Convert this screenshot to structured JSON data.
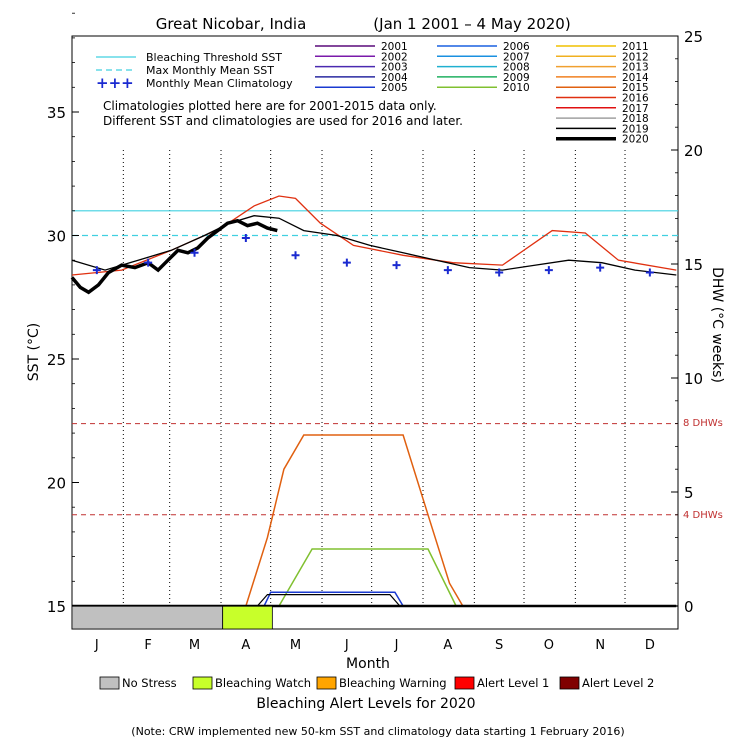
{
  "chart_data": {
    "type": "line",
    "title": "Great Nicobar, India",
    "date_range": "(Jan 1 2001 – 4 May 2020)",
    "xlabel": "Month",
    "ylabel": "SST (°C)",
    "ylabel_right": "DHW (°C weeks)",
    "yticks": [
      "15",
      "20",
      "25",
      "30",
      "35"
    ],
    "yticks_right": [
      "0",
      "5",
      "10",
      "15",
      "20",
      "25"
    ],
    "ylim": [
      15,
      39
    ],
    "ylim_right": [
      0,
      25
    ],
    "x_month_labels": [
      "J",
      "F",
      "M",
      "A",
      "M",
      "J",
      "J",
      "A",
      "S",
      "O",
      "N",
      "D"
    ],
    "notes": [
      "Climatologies plotted here are for 2001-2015 data only.",
      "Different SST and climatologies are used for 2016 and later."
    ],
    "reference_lines": {
      "bleaching_threshold_label": "Bleaching Threshold SST",
      "bleaching_threshold_sst": 31.0,
      "max_monthly_mean_label": "Max Monthly Mean SST",
      "max_monthly_mean_sst": 30.0,
      "monthly_mean_label": "Monthly Mean Climatology",
      "dhw_4_label": "4 DHWs",
      "dhw_8_label": "8 DHWs"
    },
    "years": [
      {
        "name": "2001",
        "color": "#5a0a7a",
        "bold": false
      },
      {
        "name": "2002",
        "color": "#7a1aaa",
        "bold": false
      },
      {
        "name": "2003",
        "color": "#4a2ab0",
        "bold": false
      },
      {
        "name": "2004",
        "color": "#2a2aa0",
        "bold": false
      },
      {
        "name": "2005",
        "color": "#1a3ad0",
        "bold": false
      },
      {
        "name": "2006",
        "color": "#1a60e0",
        "bold": false
      },
      {
        "name": "2007",
        "color": "#1a90e0",
        "bold": false
      },
      {
        "name": "2008",
        "color": "#20b0d0",
        "bold": false
      },
      {
        "name": "2009",
        "color": "#20b060",
        "bold": false
      },
      {
        "name": "2010",
        "color": "#80c030",
        "bold": false
      },
      {
        "name": "2011",
        "color": "#f0c000",
        "bold": false
      },
      {
        "name": "2012",
        "color": "#f0b020",
        "bold": false
      },
      {
        "name": "2013",
        "color": "#f0a030",
        "bold": false
      },
      {
        "name": "2014",
        "color": "#f08020",
        "bold": false
      },
      {
        "name": "2015",
        "color": "#e06010",
        "bold": false
      },
      {
        "name": "2016",
        "color": "#e03010",
        "bold": false
      },
      {
        "name": "2017",
        "color": "#e01010",
        "bold": false
      },
      {
        "name": "2018",
        "color": "#a0a0a0",
        "bold": false
      },
      {
        "name": "2019",
        "color": "#000000",
        "bold": false
      },
      {
        "name": "2020",
        "color": "#000000",
        "bold": true
      }
    ],
    "climatology_points": [
      {
        "day": 15,
        "sst": 28.6
      },
      {
        "day": 46,
        "sst": 28.9
      },
      {
        "day": 74,
        "sst": 29.3
      },
      {
        "day": 105,
        "sst": 29.9
      },
      {
        "day": 135,
        "sst": 29.2
      },
      {
        "day": 166,
        "sst": 28.9
      },
      {
        "day": 196,
        "sst": 28.8
      },
      {
        "day": 227,
        "sst": 28.6
      },
      {
        "day": 258,
        "sst": 28.5
      },
      {
        "day": 288,
        "sst": 28.6
      },
      {
        "day": 319,
        "sst": 28.7
      },
      {
        "day": 349,
        "sst": 28.5
      }
    ],
    "sst_2020": [
      {
        "day": 0,
        "sst": 28.3
      },
      {
        "day": 5,
        "sst": 27.9
      },
      {
        "day": 10,
        "sst": 27.7
      },
      {
        "day": 16,
        "sst": 28.0
      },
      {
        "day": 22,
        "sst": 28.5
      },
      {
        "day": 30,
        "sst": 28.8
      },
      {
        "day": 38,
        "sst": 28.7
      },
      {
        "day": 46,
        "sst": 28.9
      },
      {
        "day": 52,
        "sst": 28.6
      },
      {
        "day": 58,
        "sst": 29.0
      },
      {
        "day": 64,
        "sst": 29.4
      },
      {
        "day": 70,
        "sst": 29.3
      },
      {
        "day": 76,
        "sst": 29.5
      },
      {
        "day": 82,
        "sst": 29.9
      },
      {
        "day": 88,
        "sst": 30.2
      },
      {
        "day": 94,
        "sst": 30.5
      },
      {
        "day": 100,
        "sst": 30.6
      },
      {
        "day": 106,
        "sst": 30.4
      },
      {
        "day": 112,
        "sst": 30.5
      },
      {
        "day": 118,
        "sst": 30.3
      },
      {
        "day": 124,
        "sst": 30.2
      }
    ],
    "sst_2019": [
      {
        "day": 0,
        "sst": 29.0
      },
      {
        "day": 20,
        "sst": 28.6
      },
      {
        "day": 40,
        "sst": 29.0
      },
      {
        "day": 60,
        "sst": 29.4
      },
      {
        "day": 80,
        "sst": 30.0
      },
      {
        "day": 95,
        "sst": 30.5
      },
      {
        "day": 110,
        "sst": 30.8
      },
      {
        "day": 125,
        "sst": 30.7
      },
      {
        "day": 140,
        "sst": 30.2
      },
      {
        "day": 160,
        "sst": 30.0
      },
      {
        "day": 180,
        "sst": 29.6
      },
      {
        "day": 200,
        "sst": 29.3
      },
      {
        "day": 220,
        "sst": 29.0
      },
      {
        "day": 240,
        "sst": 28.7
      },
      {
        "day": 260,
        "sst": 28.6
      },
      {
        "day": 280,
        "sst": 28.8
      },
      {
        "day": 300,
        "sst": 29.0
      },
      {
        "day": 320,
        "sst": 28.9
      },
      {
        "day": 340,
        "sst": 28.6
      },
      {
        "day": 365,
        "sst": 28.4
      }
    ],
    "sst_2016": [
      {
        "day": 0,
        "sst": 28.4
      },
      {
        "day": 30,
        "sst": 28.6
      },
      {
        "day": 60,
        "sst": 29.4
      },
      {
        "day": 90,
        "sst": 30.3
      },
      {
        "day": 110,
        "sst": 31.2
      },
      {
        "day": 125,
        "sst": 31.6
      },
      {
        "day": 135,
        "sst": 31.5
      },
      {
        "day": 150,
        "sst": 30.5
      },
      {
        "day": 170,
        "sst": 29.6
      },
      {
        "day": 200,
        "sst": 29.2
      },
      {
        "day": 230,
        "sst": 28.9
      },
      {
        "day": 260,
        "sst": 28.8
      },
      {
        "day": 290,
        "sst": 30.2
      },
      {
        "day": 310,
        "sst": 30.1
      },
      {
        "day": 330,
        "sst": 29.0
      },
      {
        "day": 365,
        "sst": 28.6
      }
    ],
    "dhw_2016": [
      {
        "day": 105,
        "dhw": 0
      },
      {
        "day": 118,
        "dhw": 3
      },
      {
        "day": 128,
        "dhw": 6
      },
      {
        "day": 140,
        "dhw": 7.5
      },
      {
        "day": 200,
        "dhw": 7.5
      },
      {
        "day": 215,
        "dhw": 4
      },
      {
        "day": 228,
        "dhw": 1
      },
      {
        "day": 236,
        "dhw": 0
      }
    ],
    "dhw_2010": [
      {
        "day": 125,
        "dhw": 0
      },
      {
        "day": 145,
        "dhw": 2.5
      },
      {
        "day": 215,
        "dhw": 2.5
      },
      {
        "day": 232,
        "dhw": 0
      }
    ],
    "dhw_2005": [
      {
        "day": 116,
        "dhw": 0
      },
      {
        "day": 120,
        "dhw": 0.6
      },
      {
        "day": 195,
        "dhw": 0.6
      },
      {
        "day": 200,
        "dhw": 0
      }
    ],
    "dhw_2019": [
      {
        "day": 112,
        "dhw": 0
      },
      {
        "day": 118,
        "dhw": 0.5
      },
      {
        "day": 192,
        "dhw": 0.5
      },
      {
        "day": 198,
        "dhw": 0
      }
    ],
    "dhw_2020": [
      {
        "day": 0,
        "dhw": 0
      },
      {
        "day": 365,
        "dhw": 0
      }
    ],
    "alert_levels_title": "Bleaching Alert Levels for 2020",
    "alert_legend": [
      {
        "label": "No Stress",
        "color": "#c0c0c0"
      },
      {
        "label": "Bleaching Watch",
        "color": "#c8ff2a"
      },
      {
        "label": "Bleaching Warning",
        "color": "#ffa500"
      },
      {
        "label": "Alert Level 1",
        "color": "#ff0000"
      },
      {
        "label": "Alert Level 2",
        "color": "#800000"
      }
    ],
    "alert_2020": [
      {
        "start_day": 0,
        "end_day": 91,
        "level": "No Stress"
      },
      {
        "start_day": 91,
        "end_day": 121,
        "level": "Bleaching Watch"
      }
    ],
    "footnote": "(Note: CRW implemented new 50-km SST and climatology data starting 1 February 2016)"
  }
}
